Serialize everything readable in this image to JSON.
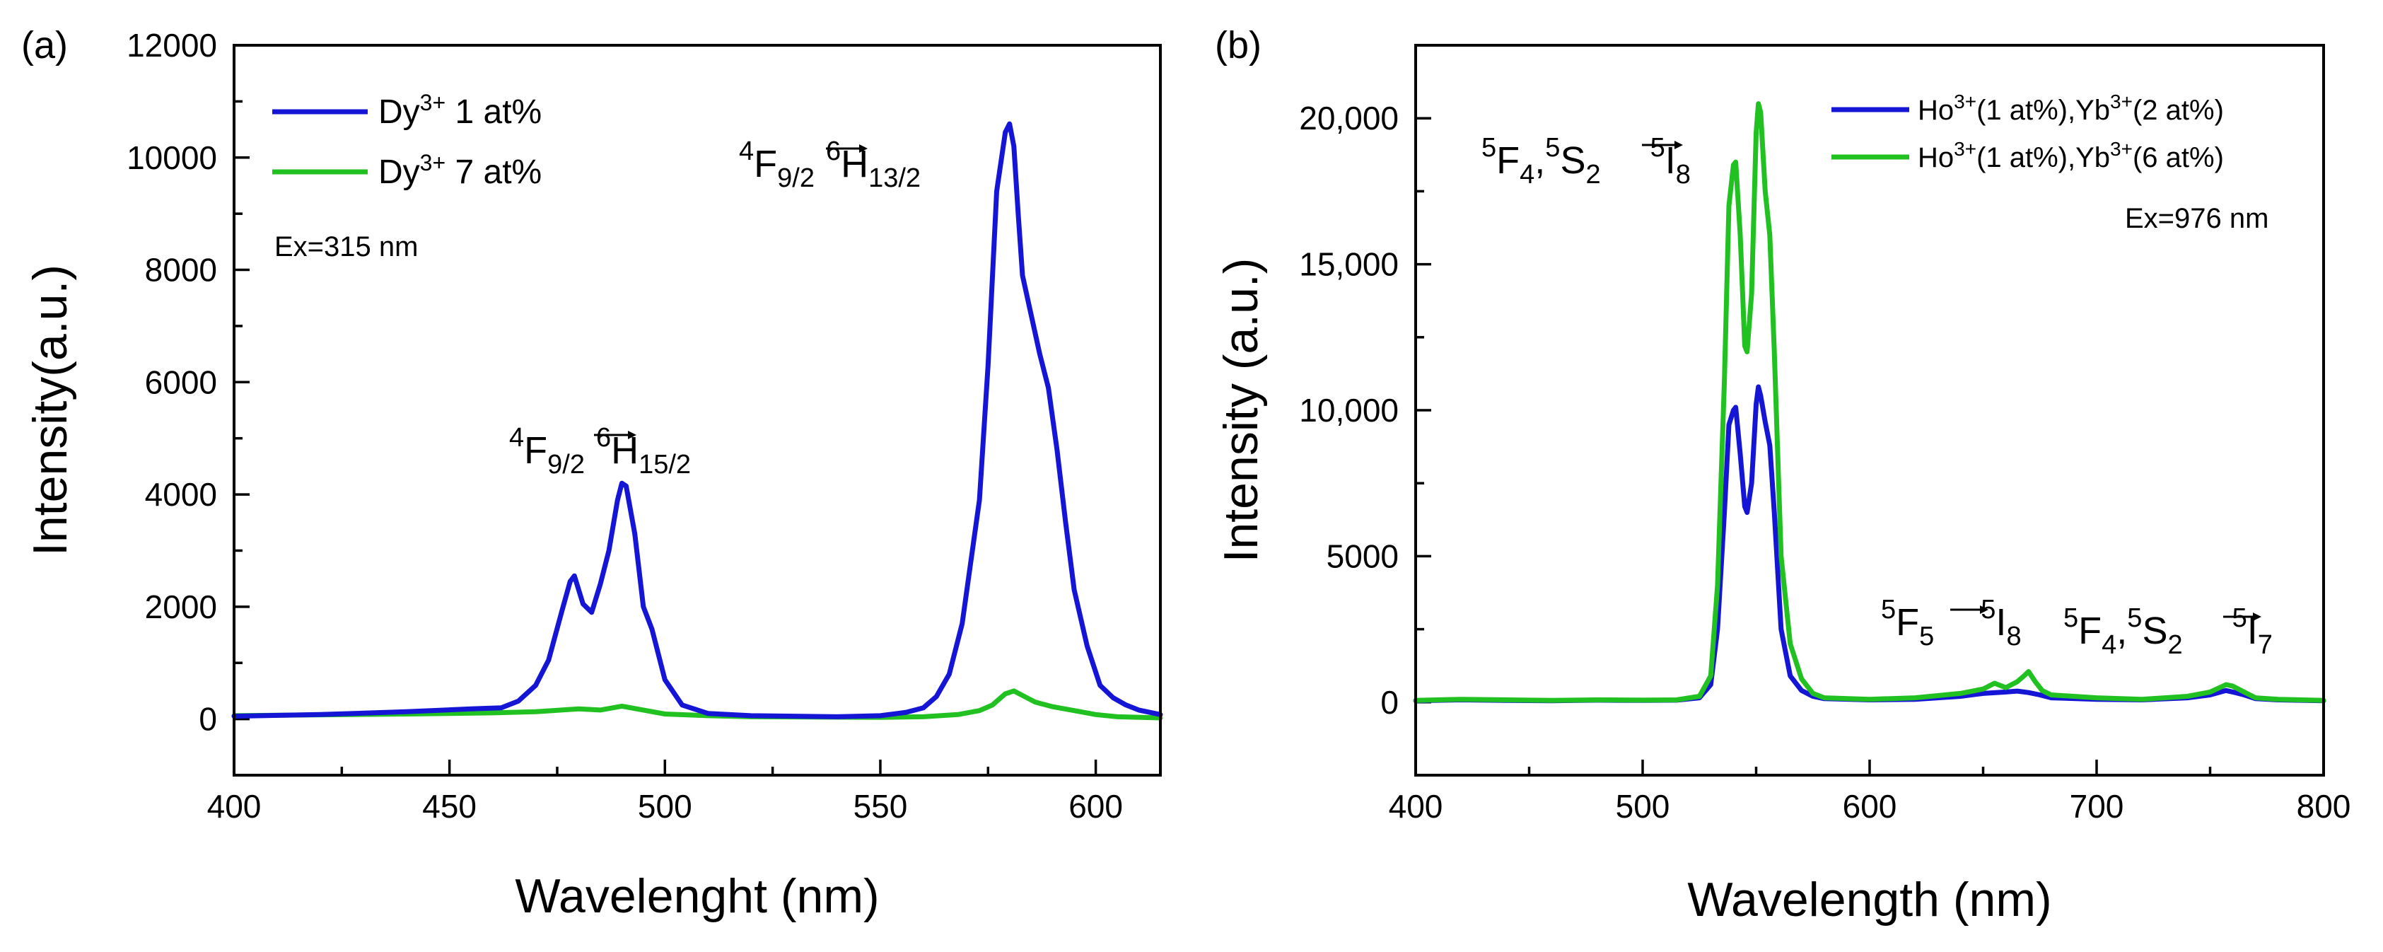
{
  "chart_data": [
    {
      "type": "line",
      "panel_label": "(a)",
      "xlabel": "Wavelenght (nm)",
      "ylabel": "Intensity(a.u.)",
      "xlim": [
        400,
        615
      ],
      "ylim": [
        -1000,
        12000
      ],
      "xticks": [
        400,
        450,
        500,
        550,
        600
      ],
      "yticks": [
        0,
        2000,
        4000,
        6000,
        8000,
        10000,
        12000
      ],
      "xtick_labels": [
        "400",
        "450",
        "500",
        "550",
        "600"
      ],
      "ytick_labels": [
        "0",
        "2000",
        "4000",
        "6000",
        "8000",
        "10000",
        "12000"
      ],
      "excitation": "Ex=315 nm",
      "annotations": [
        {
          "parts": [
            "4",
            "F",
            "9/2",
            "6",
            "H",
            "15/2"
          ],
          "x": 490,
          "y": 4300
        },
        {
          "parts": [
            "4",
            "F",
            "9/2",
            "6",
            "H",
            "13/2"
          ],
          "x": 580,
          "y": 10300
        }
      ],
      "series": [
        {
          "name": "Dy3+ 1 at%",
          "label_base": "Dy",
          "label_sup": "3+",
          "label_rest": " 1 at%",
          "color": "#1515d6",
          "x": [
            400,
            420,
            440,
            455,
            462,
            466,
            470,
            473,
            476,
            478,
            479,
            481,
            483,
            485,
            487,
            489,
            490,
            491,
            493,
            495,
            497,
            500,
            504,
            510,
            520,
            540,
            550,
            556,
            560,
            563,
            566,
            569,
            571,
            573,
            575,
            577,
            579,
            580,
            581,
            582,
            583,
            585,
            587,
            589,
            591,
            593,
            595,
            598,
            601,
            604,
            607,
            610,
            615
          ],
          "y": [
            50,
            80,
            130,
            180,
            200,
            320,
            600,
            1050,
            1900,
            2450,
            2550,
            2050,
            1900,
            2400,
            3000,
            3900,
            4200,
            4150,
            3300,
            2000,
            1600,
            700,
            250,
            100,
            60,
            40,
            60,
            120,
            200,
            400,
            800,
            1700,
            2800,
            3900,
            6300,
            9400,
            10450,
            10600,
            10200,
            9000,
            7900,
            7200,
            6500,
            5900,
            4800,
            3500,
            2300,
            1300,
            600,
            380,
            250,
            160,
            80
          ]
        },
        {
          "name": "Dy3+ 7 at%",
          "label_base": "Dy",
          "label_sup": "3+",
          "label_rest": " 7 at%",
          "color": "#22c122",
          "x": [
            400,
            440,
            460,
            470,
            480,
            485,
            490,
            495,
            500,
            510,
            520,
            550,
            560,
            568,
            573,
            576,
            579,
            581,
            583,
            586,
            590,
            595,
            600,
            605,
            615
          ],
          "y": [
            60,
            90,
            110,
            130,
            180,
            160,
            230,
            160,
            90,
            60,
            40,
            30,
            40,
            80,
            150,
            250,
            450,
            500,
            420,
            300,
            220,
            150,
            80,
            40,
            20
          ]
        }
      ]
    },
    {
      "type": "line",
      "panel_label": "(b)",
      "xlabel": "Wavelength (nm)",
      "ylabel": "Intensity (a.u.)",
      "xlim": [
        400,
        800
      ],
      "ylim": [
        -2500,
        22500
      ],
      "xticks": [
        400,
        500,
        600,
        700,
        800
      ],
      "yticks": [
        0,
        5000,
        10000,
        15000,
        20000
      ],
      "xtick_labels": [
        "400",
        "500",
        "600",
        "700",
        "800"
      ],
      "ytick_labels": [
        "0",
        "5000",
        "10,000",
        "15,000",
        "20,000"
      ],
      "excitation": "Ex=976 nm",
      "annotations": [
        {
          "parts": [
            "5",
            "F",
            "4",
            "5",
            "S",
            "2",
            "5",
            "I",
            "8"
          ],
          "x": 545,
          "y": 17800
        },
        {
          "parts": [
            "5",
            "F",
            "5",
            "5",
            "I",
            "8"
          ],
          "x": 655,
          "y": 2300
        },
        {
          "parts": [
            "5",
            "F",
            "4",
            "5",
            "S",
            "2",
            "5",
            "I",
            "7"
          ],
          "x": 758,
          "y": 1300
        }
      ],
      "series": [
        {
          "name": "Ho3+(1 at%),Yb3+(2 at%)",
          "label_base": "Ho",
          "label_sup": "3+",
          "label_mid": "(1 at%),Yb",
          "label_sup2": "3+",
          "label_rest": "(2 at%)",
          "color": "#1515d6",
          "x": [
            400,
            420,
            440,
            460,
            480,
            500,
            515,
            525,
            530,
            533,
            536,
            538,
            540,
            541,
            543,
            545,
            546,
            548,
            550,
            551,
            552,
            554,
            556,
            558,
            561,
            565,
            570,
            575,
            580,
            600,
            620,
            640,
            650,
            660,
            665,
            670,
            675,
            680,
            700,
            720,
            740,
            750,
            757,
            760,
            765,
            770,
            780,
            800
          ],
          "y": [
            50,
            80,
            60,
            50,
            70,
            60,
            70,
            150,
            600,
            2500,
            6500,
            9500,
            10000,
            10100,
            8500,
            6700,
            6500,
            7500,
            10200,
            10800,
            10500,
            9600,
            8800,
            6500,
            2500,
            900,
            400,
            200,
            120,
            80,
            100,
            200,
            300,
            350,
            380,
            330,
            250,
            150,
            100,
            80,
            150,
            250,
            400,
            350,
            250,
            120,
            80,
            50
          ]
        },
        {
          "name": "Ho3+(1 at%),Yb3+(6 at%)",
          "label_base": "Ho",
          "label_sup": "3+",
          "label_mid": "(1 at%),Yb",
          "label_sup2": "3+",
          "label_rest": "(6 at%)",
          "color": "#22c122",
          "x": [
            400,
            420,
            440,
            460,
            480,
            500,
            515,
            525,
            530,
            533,
            536,
            538,
            540,
            541,
            543,
            545,
            546,
            548,
            550,
            551,
            552,
            554,
            556,
            558,
            561,
            565,
            570,
            575,
            580,
            600,
            620,
            640,
            650,
            655,
            660,
            665,
            668,
            670,
            673,
            676,
            680,
            700,
            720,
            740,
            750,
            757,
            760,
            765,
            770,
            780,
            800
          ],
          "y": [
            60,
            100,
            80,
            60,
            80,
            70,
            80,
            200,
            900,
            4000,
            11000,
            17000,
            18400,
            18500,
            16000,
            12200,
            12000,
            14000,
            19500,
            20500,
            20200,
            17500,
            16000,
            12000,
            5000,
            2000,
            800,
            300,
            150,
            100,
            150,
            300,
            450,
            650,
            500,
            700,
            900,
            1050,
            700,
            400,
            250,
            150,
            100,
            200,
            350,
            600,
            550,
            350,
            150,
            100,
            60
          ]
        }
      ]
    }
  ]
}
